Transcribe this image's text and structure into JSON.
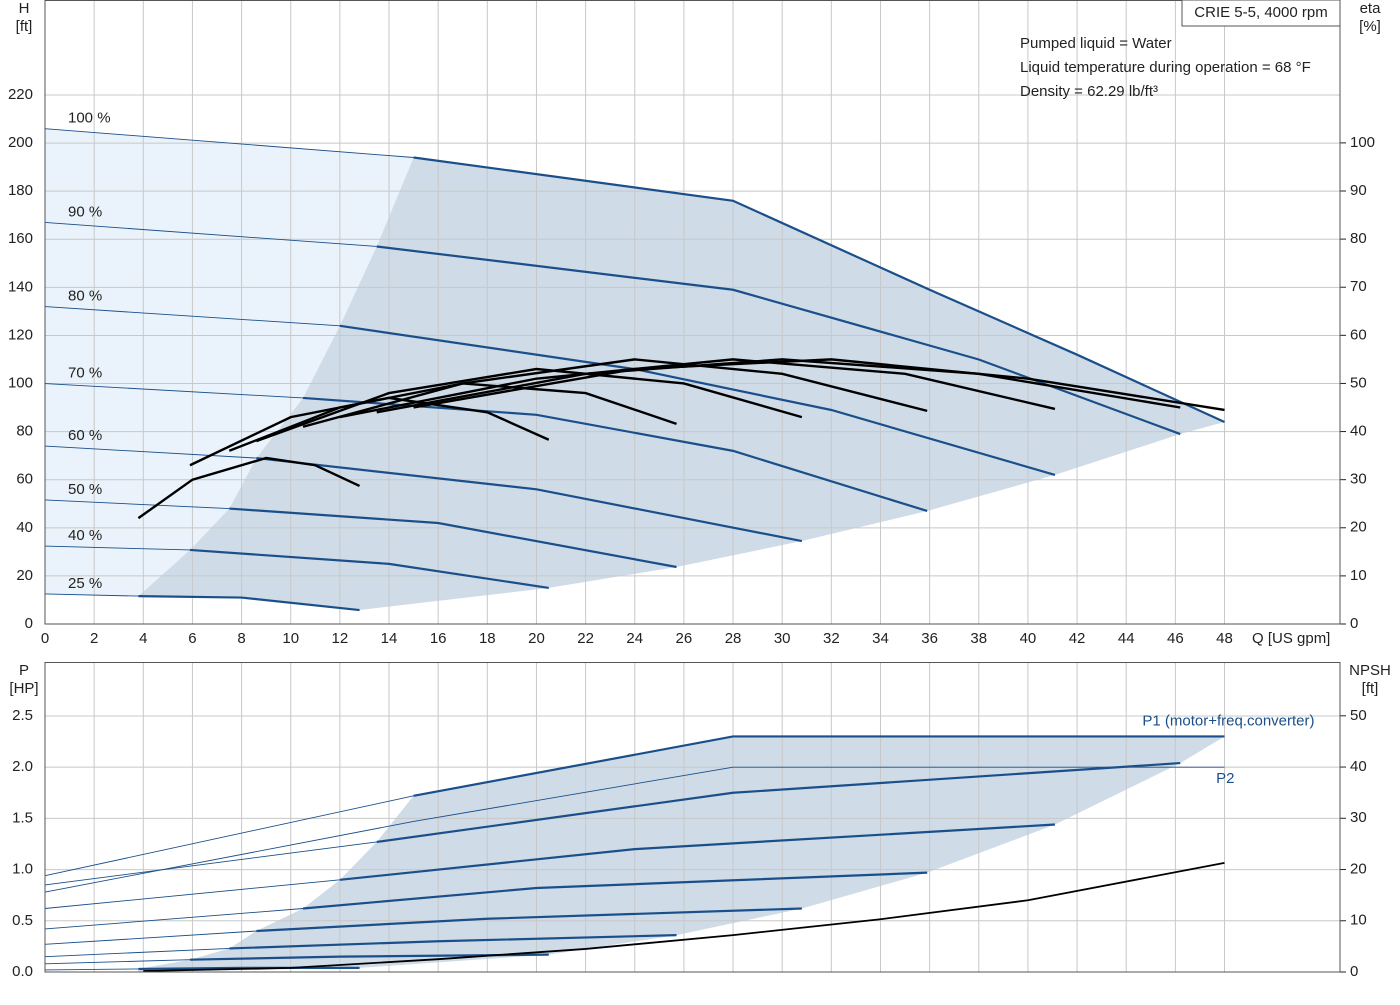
{
  "chart_data": [
    {
      "type": "line",
      "title": "CRIE 5-5, 4000 rpm",
      "annotations": [
        "Pumped liquid = Water",
        "Liquid temperature during operation = 68 °F",
        "Density = 62.29 lb/ft³"
      ],
      "ylabel": "H",
      "yunit": "[ft]",
      "y2label": "eta",
      "y2unit": "[%]",
      "xlabel": "Q [US gpm]",
      "xlim": [
        0,
        52.7
      ],
      "xticks": [
        0,
        2,
        4,
        6,
        8,
        10,
        12,
        14,
        16,
        18,
        20,
        22,
        24,
        26,
        28,
        30,
        32,
        34,
        36,
        38,
        40,
        42,
        44,
        46,
        48
      ],
      "ylim": [
        0,
        259.5
      ],
      "yticks": [
        0,
        20,
        40,
        60,
        80,
        100,
        120,
        140,
        160,
        180,
        200,
        220
      ],
      "y2lim": [
        0,
        129.7
      ],
      "y2ticks": [
        0,
        10,
        20,
        30,
        40,
        50,
        60,
        70,
        80,
        90,
        100
      ],
      "grid": true,
      "series": [
        {
          "name": "100 %",
          "color": "#1a4f8a",
          "x": [
            0,
            15,
            28,
            36,
            42,
            48
          ],
          "values": [
            206,
            194,
            176,
            139,
            112,
            84
          ]
        },
        {
          "name": "90 %",
          "color": "#1a4f8a",
          "x": [
            0,
            13.5,
            28,
            38,
            46.2
          ],
          "values": [
            167,
            157,
            139,
            110,
            79
          ]
        },
        {
          "name": "80 %",
          "color": "#1a4f8a",
          "x": [
            0,
            12,
            24,
            32,
            41.1
          ],
          "values": [
            132,
            124,
            106,
            89,
            62
          ]
        },
        {
          "name": "70 %",
          "color": "#1a4f8a",
          "x": [
            0,
            10.5,
            20,
            28,
            35.9
          ],
          "values": [
            100,
            94,
            87,
            72,
            47
          ]
        },
        {
          "name": "60 %",
          "color": "#1a4f8a",
          "x": [
            0,
            8.6,
            20,
            30.8
          ],
          "values": [
            74,
            69,
            56,
            34.5
          ]
        },
        {
          "name": "50 %",
          "color": "#1a4f8a",
          "x": [
            0,
            7.5,
            16,
            25.7
          ],
          "values": [
            51.6,
            48,
            42,
            23.7
          ]
        },
        {
          "name": "40 %",
          "color": "#1a4f8a",
          "x": [
            0,
            5.9,
            14,
            20.5
          ],
          "values": [
            32.4,
            30.8,
            25,
            15
          ]
        },
        {
          "name": "25 %",
          "color": "#1a4f8a",
          "x": [
            0,
            3.8,
            8,
            12.8
          ],
          "values": [
            12.5,
            11.6,
            11,
            5.8
          ]
        },
        {
          "axis": "y2",
          "color": "#000000",
          "x": [
            15,
            24,
            32,
            40,
            48
          ],
          "values": [
            45,
            53,
            55,
            51,
            44.5
          ]
        },
        {
          "axis": "y2",
          "color": "#000000",
          "x": [
            13.5,
            22,
            30,
            38,
            46.2
          ],
          "values": [
            44,
            52,
            55,
            52,
            45
          ]
        },
        {
          "axis": "y2",
          "color": "#000000",
          "x": [
            12,
            20,
            28,
            35,
            41.1
          ],
          "values": [
            43,
            51,
            55,
            52,
            44.7
          ]
        },
        {
          "axis": "y2",
          "color": "#000000",
          "x": [
            10.5,
            17,
            24,
            30,
            35.9
          ],
          "values": [
            41,
            50,
            55,
            52,
            44.3
          ]
        },
        {
          "axis": "y2",
          "color": "#000000",
          "x": [
            8.6,
            14,
            20,
            26,
            30.8
          ],
          "values": [
            38,
            48,
            53,
            50,
            43
          ]
        },
        {
          "axis": "y2",
          "color": "#000000",
          "x": [
            7.5,
            12,
            17,
            22,
            25.7
          ],
          "values": [
            36,
            45,
            50,
            48,
            41.6
          ]
        },
        {
          "axis": "y2",
          "color": "#000000",
          "x": [
            5.9,
            10,
            14,
            18,
            20.5
          ],
          "values": [
            33,
            43,
            47,
            44,
            38.3
          ]
        },
        {
          "axis": "y2",
          "color": "#000000",
          "x": [
            3.8,
            6,
            9,
            11,
            12.8
          ],
          "values": [
            22,
            30,
            34.5,
            33,
            28.7
          ]
        }
      ]
    },
    {
      "type": "line",
      "ylabel": "P",
      "yunit": "[HP]",
      "y2label": "NPSH",
      "y2unit": "[ft]",
      "xlim": [
        0,
        52.7
      ],
      "ylim": [
        0,
        3.027
      ],
      "yticks": [
        {
          "value": 0,
          "label": "0.0"
        },
        0.5,
        {
          "value": 1,
          "label": "1.0"
        },
        1.5,
        {
          "value": 2,
          "label": "2.0"
        },
        2.5
      ],
      "y2lim": [
        0,
        60.5
      ],
      "y2ticks": [
        0,
        10,
        20,
        30,
        40,
        50
      ],
      "grid": true,
      "series": [
        {
          "name": "P1 (motor+freq.converter)",
          "color": "#1a4f8a",
          "x": [
            0,
            15,
            28,
            48
          ],
          "values": [
            0.94,
            1.72,
            2.3,
            2.3
          ]
        },
        {
          "name": "P2",
          "color": "#1a4f8a",
          "x": [
            0,
            15,
            28,
            48
          ],
          "values": [
            0.78,
            1.47,
            2.0,
            2.0
          ]
        },
        {
          "color": "#1a4f8a",
          "x": [
            0,
            13.5,
            28,
            46.2
          ],
          "values": [
            0.85,
            1.27,
            1.75,
            2.04
          ]
        },
        {
          "color": "#1a4f8a",
          "x": [
            0,
            12,
            24,
            41.1
          ],
          "values": [
            0.62,
            0.9,
            1.2,
            1.44
          ]
        },
        {
          "color": "#1a4f8a",
          "x": [
            0,
            10.5,
            20,
            35.9
          ],
          "values": [
            0.42,
            0.62,
            0.82,
            0.97
          ]
        },
        {
          "color": "#1a4f8a",
          "x": [
            0,
            8.6,
            18,
            30.8
          ],
          "values": [
            0.27,
            0.4,
            0.52,
            0.62
          ]
        },
        {
          "color": "#1a4f8a",
          "x": [
            0,
            7.5,
            16,
            25.7
          ],
          "values": [
            0.15,
            0.23,
            0.3,
            0.36
          ]
        },
        {
          "color": "#1a4f8a",
          "x": [
            0,
            5.9,
            12,
            20.5
          ],
          "values": [
            0.08,
            0.12,
            0.15,
            0.17
          ]
        },
        {
          "color": "#1a4f8a",
          "x": [
            0,
            3.8,
            8,
            12.8
          ],
          "values": [
            0.02,
            0.03,
            0.04,
            0.04
          ]
        },
        {
          "axis": "y2",
          "color": "#000000",
          "x": [
            4,
            10,
            16,
            22,
            28,
            34,
            40,
            48
          ],
          "values": [
            0.2,
            0.8,
            2.5,
            4.5,
            7.2,
            10.3,
            14,
            21.3
          ]
        }
      ]
    }
  ]
}
